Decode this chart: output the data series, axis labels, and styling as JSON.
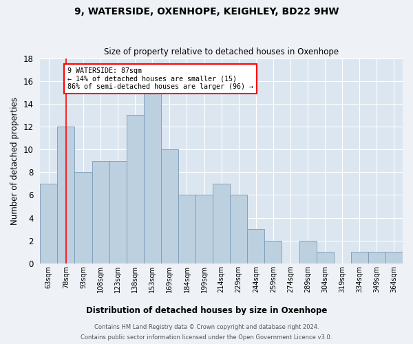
{
  "title": "9, WATERSIDE, OXENHOPE, KEIGHLEY, BD22 9HW",
  "subtitle": "Size of property relative to detached houses in Oxenhope",
  "xlabel": "Distribution of detached houses by size in Oxenhope",
  "ylabel": "Number of detached properties",
  "bar_labels": [
    "63sqm",
    "78sqm",
    "93sqm",
    "108sqm",
    "123sqm",
    "138sqm",
    "153sqm",
    "169sqm",
    "184sqm",
    "199sqm",
    "214sqm",
    "229sqm",
    "244sqm",
    "259sqm",
    "274sqm",
    "289sqm",
    "304sqm",
    "319sqm",
    "334sqm",
    "349sqm",
    "364sqm"
  ],
  "bar_values": [
    7,
    12,
    8,
    9,
    9,
    13,
    15,
    10,
    6,
    6,
    7,
    6,
    3,
    2,
    0,
    2,
    1,
    0,
    1,
    1,
    1
  ],
  "bar_color": "#bdd0e0",
  "bar_edgecolor": "#7a9ab5",
  "annotation_text": "9 WATERSIDE: 87sqm\n← 14% of detached houses are smaller (15)\n86% of semi-detached houses are larger (96) →",
  "vline_x": 1.0,
  "vline_color": "red",
  "annotation_box_edgecolor": "red",
  "ylim": [
    0,
    18
  ],
  "yticks": [
    0,
    2,
    4,
    6,
    8,
    10,
    12,
    14,
    16,
    18
  ],
  "footer_line1": "Contains HM Land Registry data © Crown copyright and database right 2024.",
  "footer_line2": "Contains public sector information licensed under the Open Government Licence v3.0.",
  "background_color": "#eef2f7",
  "plot_background_color": "#dce6f0"
}
